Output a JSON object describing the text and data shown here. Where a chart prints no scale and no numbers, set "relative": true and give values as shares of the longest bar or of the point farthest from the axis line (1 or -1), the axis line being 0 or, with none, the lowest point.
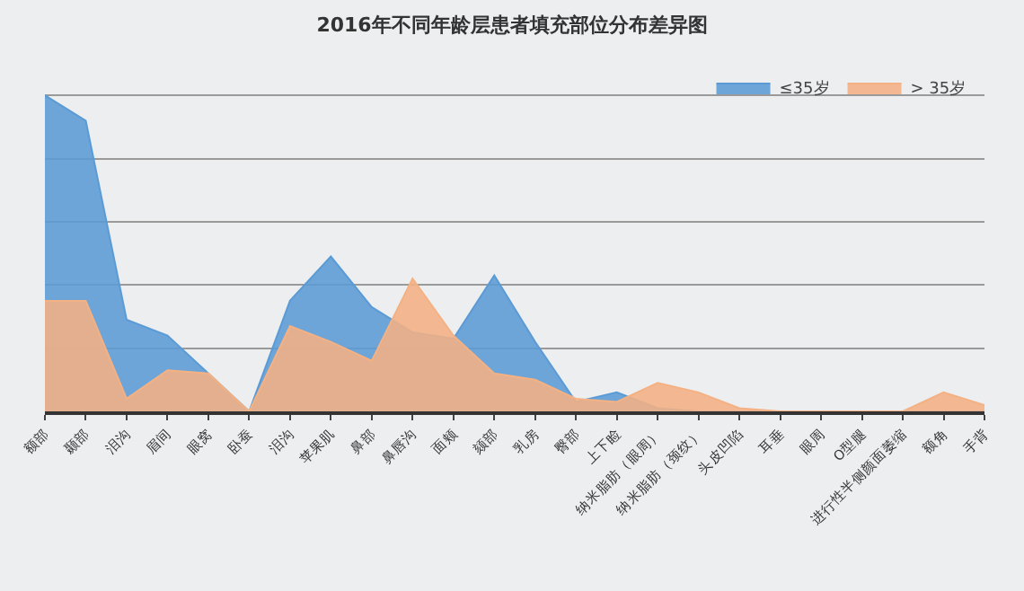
{
  "chart_data": {
    "type": "area",
    "title": "2016年不同年龄层患者填充部位分布差异图",
    "relative": true,
    "grid": "y",
    "legend": "top right",
    "categories": [
      "额部",
      "颞部",
      "泪沟",
      "眉间",
      "眼窝",
      "卧蚕",
      "泪沟",
      "苹果肌",
      "鼻部",
      "鼻唇沟",
      "面颊",
      "颏部",
      "乳房",
      "臀部",
      "上下睑",
      "纳米脂肪（眼周）",
      "纳米脂肪（颈纹）",
      "头皮凹陷",
      "耳垂",
      "眼周",
      "O型腿",
      "进行性半侧颜面萎缩",
      "额角",
      "手背"
    ],
    "series": [
      {
        "name": "≤35岁",
        "color": "#5b9bd5",
        "values": [
          1.0,
          0.92,
          0.29,
          0.24,
          0.12,
          0,
          0.35,
          0.49,
          0.33,
          0.25,
          0.23,
          0.43,
          0.22,
          0.03,
          0.06,
          0.01,
          0,
          0,
          0,
          0,
          0,
          0,
          0,
          0
        ]
      },
      {
        "name": "> 35岁",
        "color": "#f4b183",
        "values": [
          0.35,
          0.35,
          0.04,
          0.13,
          0.12,
          0,
          0.27,
          0.22,
          0.16,
          0.42,
          0.24,
          0.12,
          0.1,
          0.04,
          0.03,
          0.09,
          0.06,
          0.01,
          0,
          0,
          0,
          0,
          0.06,
          0.02
        ]
      }
    ]
  }
}
